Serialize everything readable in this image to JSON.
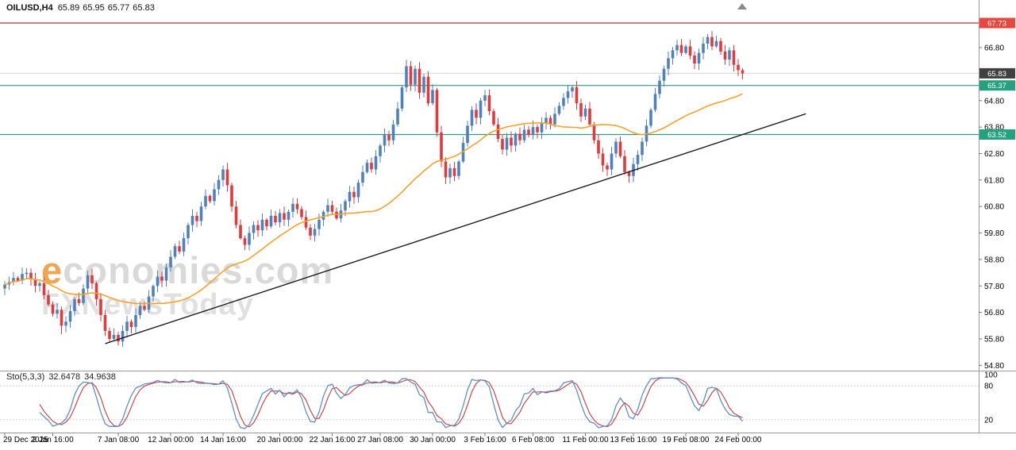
{
  "header": {
    "symbol": "OILUSD,H4",
    "open": "65.89",
    "high": "65.95",
    "low": "65.77",
    "close": "65.83"
  },
  "watermark": {
    "line1": "economies.com",
    "line2": "FXNewsToday"
  },
  "colors": {
    "up": "#4f81bd",
    "down": "#e03a3a",
    "ma": "#f5a32b",
    "trend": "#111111",
    "res_line": "#a23b3b",
    "res_badge": "#e8463f",
    "sup_line": "#2f9d83",
    "sup_badge": "#23a27d",
    "last_badge": "#404040",
    "last_line": "#d5d5d5",
    "sto_main": "#5d8fc9",
    "sto_signal": "#cc3a3a",
    "axis_text": "#000000",
    "separator": "#9b9b9b",
    "levels": "#c4c4c4",
    "tick": "#777777",
    "shift_marker": "#8a8a8a"
  },
  "chart_data": {
    "type": "candlestick",
    "symbol": "OILUSD",
    "timeframe": "H4",
    "title": "OILUSD,H4 65.89 65.95 65.77 65.83",
    "y_axis": {
      "ticks": [
        "66.80",
        "64.80",
        "63.80",
        "62.80",
        "61.80",
        "60.80",
        "59.80",
        "58.80",
        "57.80",
        "56.80",
        "55.80",
        "54.80"
      ],
      "ylim": [
        54.6,
        68.6
      ]
    },
    "x_axis": {
      "labels": [
        {
          "text": "29 Dec 2025",
          "index": 0
        },
        {
          "text": "2 Jan 16:00",
          "index": 11
        },
        {
          "text": "7 Jan 08:00",
          "index": 26
        },
        {
          "text": "12 Jan 00:00",
          "index": 38
        },
        {
          "text": "14 Jan 16:00",
          "index": 50
        },
        {
          "text": "20 Jan 00:00",
          "index": 63
        },
        {
          "text": "22 Jan 16:00",
          "index": 75
        },
        {
          "text": "27 Jan 08:00",
          "index": 86
        },
        {
          "text": "30 Jan 00:00",
          "index": 98
        },
        {
          "text": "3 Feb 16:00",
          "index": 110
        },
        {
          "text": "6 Feb 08:00",
          "index": 121
        },
        {
          "text": "11 Feb 00:00",
          "index": 133
        },
        {
          "text": "13 Feb 16:00",
          "index": 144
        },
        {
          "text": "19 Feb 08:00",
          "index": 156
        },
        {
          "text": "24 Feb 00:00",
          "index": 168
        }
      ]
    },
    "candles": {
      "first_open": 57.7,
      "closes": [
        57.85,
        57.95,
        58.1,
        58.0,
        58.25,
        58.3,
        58.05,
        57.8,
        57.9,
        57.45,
        57.1,
        56.75,
        56.9,
        56.3,
        56.45,
        56.85,
        57.3,
        57.15,
        57.7,
        58.2,
        57.9,
        57.3,
        56.7,
        56.1,
        55.8,
        55.95,
        55.7,
        56.1,
        56.45,
        56.25,
        56.7,
        57.05,
        56.9,
        57.4,
        57.8,
        58.15,
        58.0,
        58.5,
        58.9,
        59.3,
        59.1,
        59.6,
        60.1,
        60.45,
        60.25,
        60.8,
        61.2,
        61.0,
        61.45,
        61.8,
        62.2,
        61.6,
        60.8,
        60.1,
        59.6,
        59.35,
        59.8,
        60.1,
        59.9,
        60.3,
        60.05,
        60.45,
        60.2,
        60.55,
        60.3,
        60.6,
        60.9,
        60.7,
        60.4,
        60.0,
        59.7,
        59.95,
        60.3,
        60.6,
        60.85,
        60.6,
        60.35,
        60.65,
        61.0,
        61.35,
        61.15,
        61.7,
        62.1,
        62.45,
        62.2,
        62.7,
        63.1,
        63.5,
        63.3,
        63.9,
        64.5,
        65.3,
        66.1,
        65.4,
        66.0,
        65.1,
        65.7,
        64.7,
        65.2,
        63.6,
        62.5,
        61.9,
        62.25,
        61.95,
        62.5,
        63.2,
        63.85,
        64.45,
        64.15,
        64.8,
        65.0,
        64.4,
        63.9,
        63.35,
        62.95,
        63.4,
        63.1,
        63.55,
        63.3,
        63.7,
        63.5,
        63.8,
        63.6,
        63.95,
        64.15,
        63.9,
        64.3,
        64.6,
        64.9,
        65.15,
        65.3,
        64.7,
        64.2,
        64.5,
        63.9,
        63.3,
        62.8,
        62.35,
        62.2,
        62.8,
        63.25,
        62.7,
        62.1,
        61.95,
        62.4,
        62.75,
        63.25,
        63.85,
        64.45,
        65.05,
        65.55,
        66.0,
        66.4,
        66.7,
        66.9,
        66.6,
        66.85,
        66.5,
        66.2,
        66.6,
        66.95,
        67.2,
        66.85,
        67.05,
        66.65,
        66.35,
        66.7,
        66.15,
        65.95,
        65.83
      ],
      "extremes": [
        {
          "i": 13,
          "low": 55.98
        },
        {
          "i": 26,
          "low": 55.55
        },
        {
          "i": 50,
          "high": 62.35
        },
        {
          "i": 55,
          "low": 59.15
        },
        {
          "i": 92,
          "high": 66.35
        },
        {
          "i": 101,
          "low": 61.65
        },
        {
          "i": 110,
          "high": 65.15
        },
        {
          "i": 130,
          "high": 65.38
        },
        {
          "i": 138,
          "low": 61.95
        },
        {
          "i": 143,
          "low": 61.7
        },
        {
          "i": 154,
          "high": 67.0
        },
        {
          "i": 161,
          "high": 67.32
        },
        {
          "i": 169,
          "low": 65.6
        }
      ]
    },
    "ma": {
      "type": "sma",
      "period": 34
    },
    "hlines": [
      {
        "price": 67.73,
        "label": "67.73",
        "role": "resistance"
      },
      {
        "price": 65.37,
        "label": "65.37",
        "role": "support"
      },
      {
        "price": 63.52,
        "label": "63.52",
        "role": "support"
      }
    ],
    "last_price": {
      "value": 65.83,
      "label": "65.83"
    },
    "trendline": {
      "from": {
        "index": 23,
        "price": 55.62
      },
      "to": {
        "index": 183.5,
        "price": 64.3
      }
    },
    "indicator": {
      "name": "Sto(5,3,3)",
      "value_main": "32.6478",
      "value_signal": "34.9638",
      "levels": [
        "100",
        "80",
        "20"
      ],
      "level_values": [
        100,
        80,
        20
      ],
      "params": {
        "k": 5,
        "slowing": 3,
        "d": 3
      },
      "range": [
        0,
        100
      ]
    }
  }
}
